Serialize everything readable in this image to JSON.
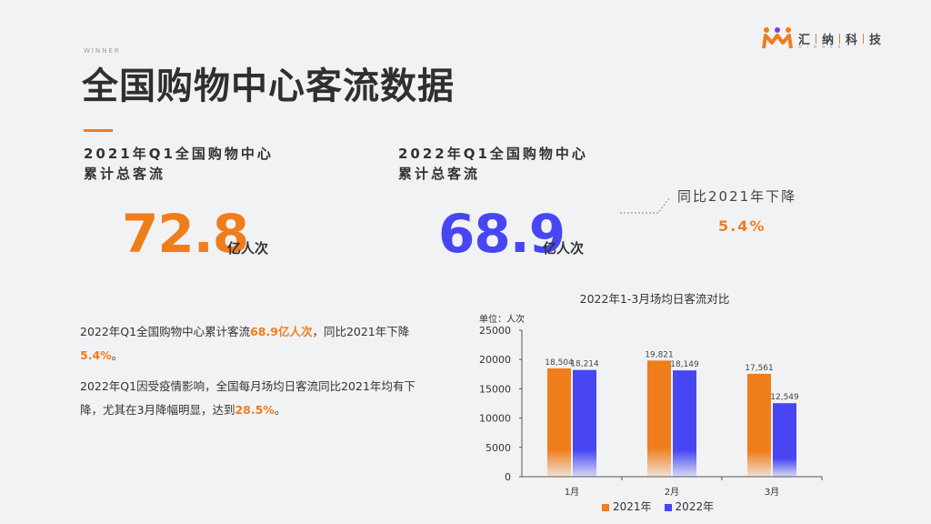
{
  "header": {
    "kicker": "WINNER",
    "title": "全国购物中心客流数据"
  },
  "brand": {
    "chars": [
      "汇",
      "纳",
      "科",
      "技"
    ],
    "sub": "WINNER",
    "colors": {
      "orange": "#f07d1c",
      "purple": "#7b3fe4"
    }
  },
  "stats": [
    {
      "heading_line1": "2021年Q1全国购物中心",
      "heading_line2": "累计总客流",
      "value": "72.8",
      "unit": "亿人次",
      "color": "#f07d1c"
    },
    {
      "heading_line1": "2022年Q1全国购物中心",
      "heading_line2": "累计总客流",
      "value": "68.9",
      "unit": "亿人次",
      "color": "#4746f2"
    }
  ],
  "comparison": {
    "label": "同比2021年下降",
    "value": "5.4%"
  },
  "paragraphs": {
    "p1_a": "2022年Q1全国购物中心累计客流",
    "p1_hl1": "68.9亿人次",
    "p1_b": "，同比2021年下降",
    "p1_hl2": "5.4%",
    "p1_c": "。",
    "p2_a": "2022年Q1因受疫情影响，全国每月场均日客流同比2021年均有下降，尤其在3月降幅明显，达到",
    "p2_hl": "28.5%",
    "p2_b": "。"
  },
  "chart_data": {
    "type": "bar",
    "title": "2022年1-3月场均日客流对比",
    "ylabel": "单位：人次",
    "categories": [
      "1月",
      "2月",
      "3月"
    ],
    "series": [
      {
        "name": "2021年",
        "values": [
          18504,
          19821,
          17561
        ],
        "color": "#f07d1c"
      },
      {
        "name": "2022年",
        "values": [
          18214,
          18149,
          12549
        ],
        "color": "#4746f2"
      }
    ],
    "data_labels": [
      [
        "18,504",
        "18,214"
      ],
      [
        "19,821",
        "18,149"
      ],
      [
        "17,561",
        "12,549"
      ]
    ],
    "ylim": [
      0,
      25000
    ],
    "yticks": [
      0,
      5000,
      10000,
      15000,
      20000,
      25000
    ],
    "ytick_labels": [
      "0",
      "5000",
      "10000",
      "15000",
      "20000",
      "25000"
    ],
    "legend_position": "bottom",
    "grid": false
  }
}
